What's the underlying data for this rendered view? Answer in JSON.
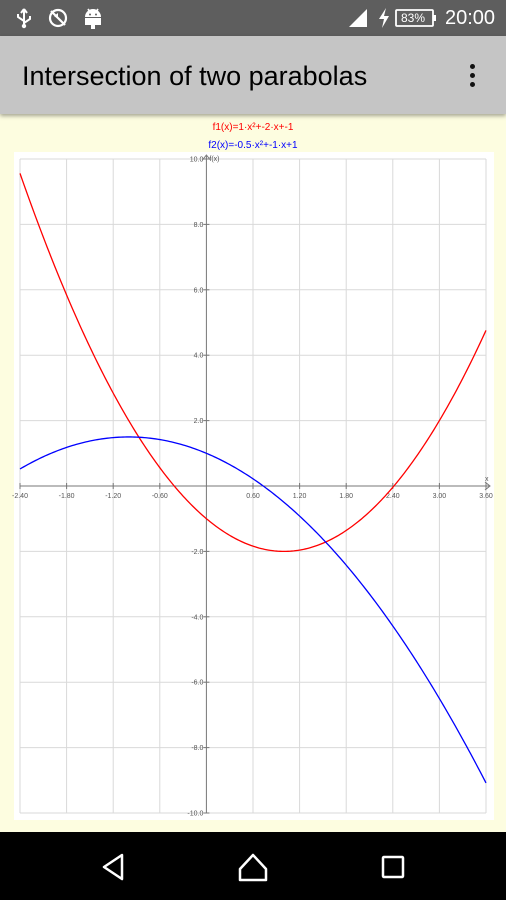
{
  "status_bar": {
    "battery": "83%",
    "time": "20:00",
    "icons": [
      "usb-icon",
      "no-sync-icon",
      "android-debug-icon",
      "signal-icon",
      "charging-icon",
      "battery-icon"
    ]
  },
  "app_bar": {
    "title": "Intersection of two parabolas",
    "menu_icon": "more-vert-icon"
  },
  "chart_data": {
    "type": "line",
    "legend": [
      "f1(x)=1·x²+-2·x+-1",
      "f2(x)=-0.5·x²+-1·x+1"
    ],
    "ylabel": "f(x)",
    "xlabel": "x",
    "xlim": [
      -2.4,
      3.6
    ],
    "ylim": [
      -10.0,
      10.0
    ],
    "x_ticks": [
      "-2.40",
      "-1.80",
      "-1.20",
      "-0.60",
      "0.60",
      "1.20",
      "1.80",
      "2.40",
      "3.00",
      "3.60"
    ],
    "y_ticks": [
      "10.0",
      "8.0",
      "6.0",
      "4.0",
      "2.0",
      "-2.0",
      "-4.0",
      "-6.0",
      "-8.0",
      "-10.0"
    ],
    "grid": true,
    "series": [
      {
        "name": "f1(x)=1·x²+-2·x+-1",
        "color": "#ff0000",
        "coeffs": [
          1,
          -2,
          -1
        ]
      },
      {
        "name": "f2(x)=-0.5·x²+-1·x+1",
        "color": "#0000ff",
        "coeffs": [
          -0.5,
          -1,
          1
        ]
      }
    ]
  },
  "colors": {
    "status_bar": "#5e5e5e",
    "app_bar": "#c5c5c5",
    "content_bg": "#fdfde0",
    "plot_bg": "#ffffff",
    "grid": "#d9d9d9"
  }
}
